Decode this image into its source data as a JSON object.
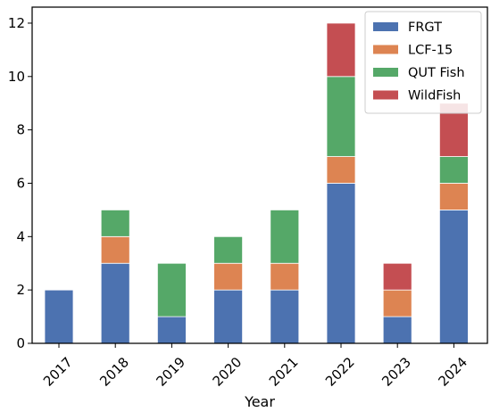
{
  "chart_data": {
    "type": "bar",
    "stacked": true,
    "categories": [
      "2017",
      "2018",
      "2019",
      "2020",
      "2021",
      "2022",
      "2023",
      "2024"
    ],
    "series": [
      {
        "name": "FRGT",
        "color": "#4c72b0",
        "values": [
          2,
          3,
          1,
          2,
          2,
          6,
          1,
          5
        ]
      },
      {
        "name": "LCF-15",
        "color": "#dd8452",
        "values": [
          0,
          1,
          0,
          1,
          1,
          1,
          1,
          1
        ]
      },
      {
        "name": "QUT Fish",
        "color": "#55a868",
        "values": [
          0,
          1,
          2,
          1,
          2,
          3,
          0,
          1
        ]
      },
      {
        "name": "WildFish",
        "color": "#c44e52",
        "values": [
          0,
          0,
          0,
          0,
          0,
          2,
          1,
          2
        ]
      }
    ],
    "title": "",
    "xlabel": "Year",
    "ylabel": "",
    "ylim": [
      0,
      12.6
    ],
    "yticks": [
      0,
      2,
      4,
      6,
      8,
      10,
      12
    ],
    "grid": false,
    "legend": "top-right"
  }
}
